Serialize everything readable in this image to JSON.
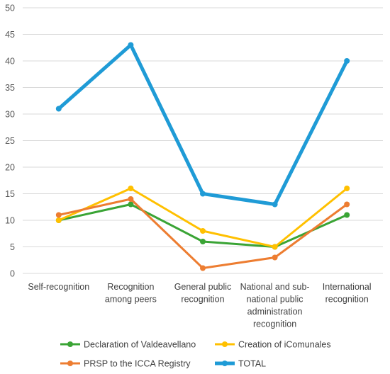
{
  "chart_data": {
    "type": "line",
    "categories": [
      [
        "Self-recognition"
      ],
      [
        "Recognition",
        "among peers"
      ],
      [
        "General public",
        "recognition"
      ],
      [
        "National and sub-",
        "national public",
        "administration",
        "recognition"
      ],
      [
        "International",
        "recognition"
      ]
    ],
    "ylim": [
      0,
      50
    ],
    "yticks": [
      0,
      5,
      10,
      15,
      20,
      25,
      30,
      35,
      40,
      45,
      50
    ],
    "grid": true,
    "legend_position": "bottom",
    "series": [
      {
        "name": "Declaration of Valdeavellano",
        "color": "#3aa435",
        "values": [
          10,
          13,
          6,
          5,
          11
        ]
      },
      {
        "name": "Creation of iComunales",
        "color": "#ffc000",
        "values": [
          10,
          16,
          8,
          5,
          16
        ]
      },
      {
        "name": "PRSP to the ICCA Registry",
        "color": "#ed7d31",
        "values": [
          11,
          14,
          1,
          3,
          13
        ]
      },
      {
        "name": "TOTAL",
        "color": "#1f9bd6",
        "values": [
          31,
          43,
          15,
          13,
          40
        ]
      }
    ]
  }
}
